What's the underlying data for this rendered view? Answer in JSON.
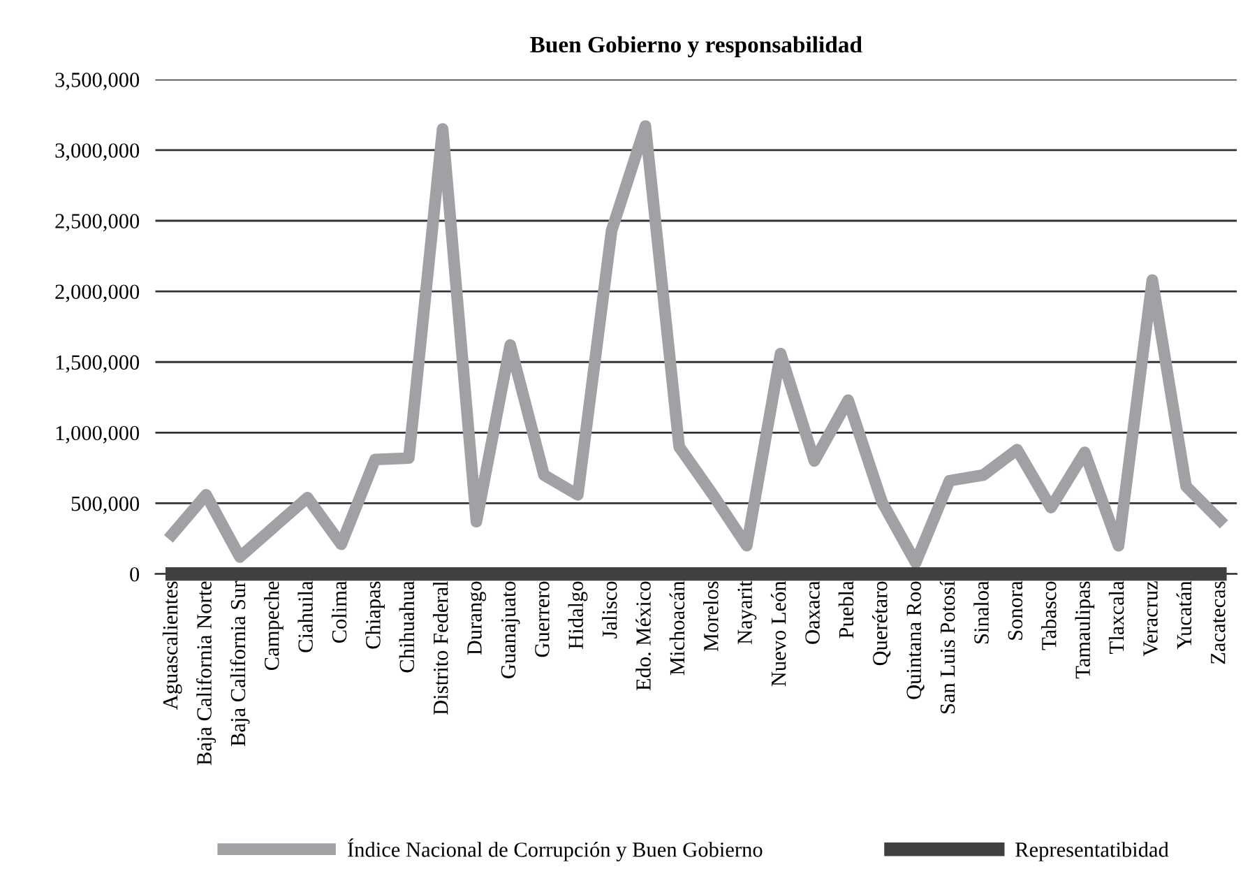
{
  "chart_data": {
    "type": "line",
    "title": "Buen Gobierno y responsabilidad",
    "categories": [
      "Aguascalientes",
      "Baja California Norte",
      "Baja California Sur",
      "Campeche",
      "Ciahuila",
      "Colima",
      "Chiapas",
      "Chihuahua",
      "Distrito Federal",
      "Durango",
      "Guanajuato",
      "Guerrero",
      "Hidalgo",
      "Jalisco",
      "Edo. México",
      "Michoacán",
      "Morelos",
      "Nayarit",
      "Nuevo León",
      "Oaxaca",
      "Puebla",
      "Querétaro",
      "Quintana Roo",
      "San Luis Potosí",
      "Sinaloa",
      "Sonora",
      "Tabasco",
      "Tamaulipas",
      "Tlaxcala",
      "Veracruz",
      "Yucatán",
      "Zacatecas"
    ],
    "series": [
      {
        "name": "Índice Nacional de Corrupción y Buen Gobierno",
        "color": "#a0a1a4",
        "values": [
          280000,
          560000,
          120000,
          330000,
          540000,
          210000,
          810000,
          820000,
          3150000,
          370000,
          1620000,
          700000,
          560000,
          2430000,
          3170000,
          900000,
          560000,
          200000,
          1560000,
          800000,
          1230000,
          510000,
          80000,
          660000,
          700000,
          880000,
          470000,
          860000,
          200000,
          2080000,
          620000,
          380000
        ]
      },
      {
        "name": "Representatibidad",
        "color": "#404040",
        "values": [
          0,
          0,
          0,
          0,
          0,
          0,
          0,
          0,
          0,
          0,
          0,
          0,
          0,
          0,
          0,
          0,
          0,
          0,
          0,
          0,
          0,
          0,
          0,
          0,
          0,
          0,
          0,
          0,
          0,
          0,
          0,
          0
        ]
      }
    ],
    "ylim": [
      0,
      3500000
    ],
    "yticks": [
      {
        "value": 0,
        "label": "0"
      },
      {
        "value": 500000,
        "label": "500,000"
      },
      {
        "value": 1000000,
        "label": "1,000,000"
      },
      {
        "value": 1500000,
        "label": "1,500,000"
      },
      {
        "value": 2000000,
        "label": "2,000,000"
      },
      {
        "value": 2500000,
        "label": "2,500,000"
      },
      {
        "value": 3000000,
        "label": "3,000,000"
      },
      {
        "value": 3500000,
        "label": "3,500,000"
      }
    ],
    "grid": "y",
    "legend": "bottom",
    "marker": "none",
    "line_style": "solid"
  }
}
